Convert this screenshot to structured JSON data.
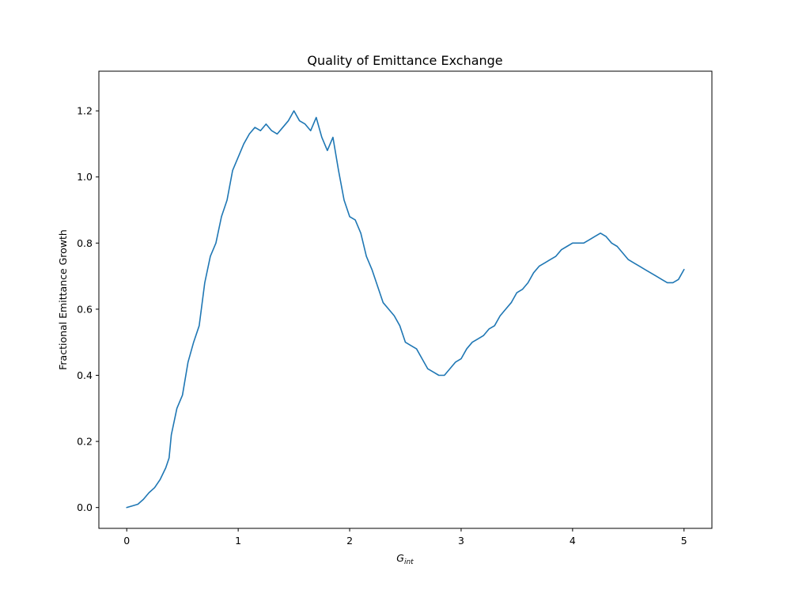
{
  "chart_data": {
    "type": "line",
    "title": "Quality of Emittance Exchange",
    "xlabel_base": "G",
    "xlabel_sub": "int",
    "ylabel": "Fractional Emittance Growth",
    "xlim": [
      -0.25,
      5.25
    ],
    "ylim": [
      -0.063,
      1.32
    ],
    "xticks": [
      0,
      1,
      2,
      3,
      4,
      5
    ],
    "yticks": [
      0.0,
      0.2,
      0.4,
      0.6,
      0.8,
      1.0,
      1.2
    ],
    "xtick_labels": [
      "0",
      "1",
      "2",
      "3",
      "4",
      "5"
    ],
    "ytick_labels": [
      "0.0",
      "0.2",
      "0.4",
      "0.6",
      "0.8",
      "1.0",
      "1.2"
    ],
    "grid": false,
    "series": [
      {
        "color": "#1f77b4",
        "x": [
          0.0,
          0.05,
          0.1,
          0.15,
          0.2,
          0.25,
          0.3,
          0.35,
          0.38,
          0.4,
          0.45,
          0.5,
          0.55,
          0.6,
          0.65,
          0.7,
          0.75,
          0.8,
          0.85,
          0.9,
          0.95,
          1.0,
          1.05,
          1.1,
          1.15,
          1.2,
          1.25,
          1.3,
          1.35,
          1.4,
          1.45,
          1.5,
          1.55,
          1.6,
          1.65,
          1.7,
          1.75,
          1.8,
          1.85,
          1.9,
          1.95,
          2.0,
          2.05,
          2.1,
          2.15,
          2.2,
          2.25,
          2.3,
          2.35,
          2.4,
          2.45,
          2.5,
          2.55,
          2.6,
          2.65,
          2.7,
          2.75,
          2.8,
          2.85,
          2.9,
          2.95,
          3.0,
          3.05,
          3.1,
          3.15,
          3.2,
          3.25,
          3.3,
          3.35,
          3.4,
          3.45,
          3.5,
          3.55,
          3.6,
          3.65,
          3.7,
          3.75,
          3.8,
          3.85,
          3.9,
          3.95,
          4.0,
          4.05,
          4.1,
          4.15,
          4.2,
          4.25,
          4.3,
          4.35,
          4.4,
          4.45,
          4.5,
          4.55,
          4.6,
          4.65,
          4.7,
          4.75,
          4.8,
          4.85,
          4.9,
          4.95,
          5.0
        ],
        "y": [
          0.0,
          0.005,
          0.01,
          0.025,
          0.045,
          0.06,
          0.085,
          0.12,
          0.15,
          0.22,
          0.3,
          0.34,
          0.44,
          0.5,
          0.55,
          0.68,
          0.76,
          0.8,
          0.88,
          0.93,
          1.02,
          1.06,
          1.1,
          1.13,
          1.15,
          1.14,
          1.16,
          1.14,
          1.13,
          1.15,
          1.17,
          1.2,
          1.17,
          1.16,
          1.14,
          1.18,
          1.12,
          1.08,
          1.12,
          1.02,
          0.93,
          0.88,
          0.87,
          0.83,
          0.76,
          0.72,
          0.67,
          0.62,
          0.6,
          0.58,
          0.55,
          0.5,
          0.49,
          0.48,
          0.45,
          0.42,
          0.41,
          0.4,
          0.4,
          0.42,
          0.44,
          0.45,
          0.48,
          0.5,
          0.51,
          0.52,
          0.54,
          0.55,
          0.58,
          0.6,
          0.62,
          0.65,
          0.66,
          0.68,
          0.71,
          0.73,
          0.74,
          0.75,
          0.76,
          0.78,
          0.79,
          0.8,
          0.8,
          0.8,
          0.81,
          0.82,
          0.83,
          0.82,
          0.8,
          0.79,
          0.77,
          0.75,
          0.74,
          0.73,
          0.72,
          0.71,
          0.7,
          0.69,
          0.68,
          0.68,
          0.69,
          0.72
        ]
      }
    ]
  }
}
